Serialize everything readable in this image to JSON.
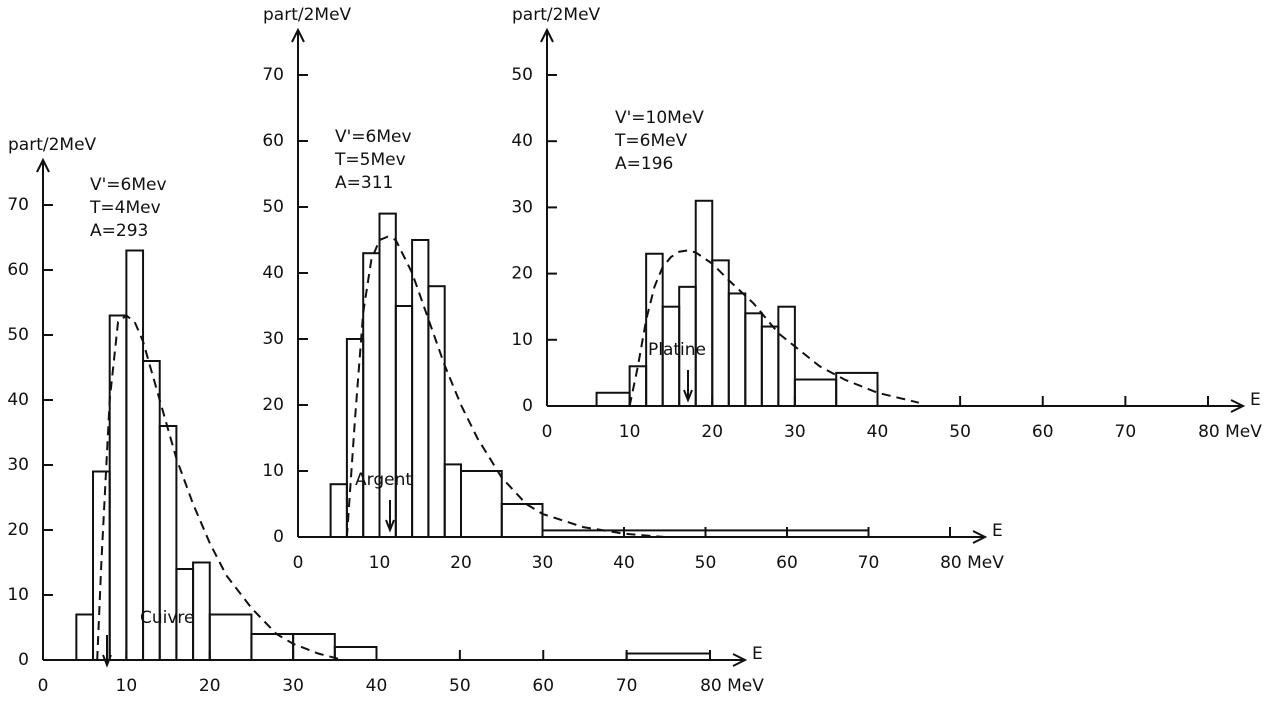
{
  "chart_data": [
    {
      "type": "histogram",
      "ylabel": "part/2MeV",
      "xlabel": "E",
      "label": "Cuivre",
      "annotations": [
        "V'=6Mev",
        "T=4Mev",
        "A=293"
      ],
      "bins": [
        4,
        6,
        8,
        10,
        12,
        14,
        16,
        18,
        20,
        25,
        30,
        35,
        40,
        70,
        80
      ],
      "values": [
        7,
        29,
        53,
        63,
        46,
        36,
        14,
        15,
        7,
        4,
        4,
        2,
        0,
        1
      ],
      "fit": {
        "x": [
          6.5,
          7,
          8,
          9,
          10,
          11,
          12,
          14,
          16,
          18,
          20,
          22,
          25,
          28,
          30,
          33,
          36
        ],
        "values": [
          0,
          15,
          40,
          52,
          53,
          52,
          49,
          40,
          31,
          24,
          18,
          13,
          8,
          4,
          2.5,
          1,
          0
        ]
      },
      "xlim": [
        0,
        80
      ],
      "ylim": [
        0,
        70
      ],
      "xticks": [
        0,
        10,
        20,
        30,
        40,
        50,
        60,
        70,
        {
          "value": 80,
          "label": "80 MeV"
        }
      ],
      "yticks": [
        0,
        10,
        20,
        30,
        40,
        50,
        60,
        70
      ]
    },
    {
      "type": "histogram",
      "ylabel": "part/2MeV",
      "xlabel": "E",
      "label": "Argent",
      "annotations": [
        "V'=6Mev",
        "T=5Mev",
        "A=311"
      ],
      "bins": [
        4,
        6,
        8,
        10,
        12,
        14,
        16,
        18,
        20,
        25,
        30,
        40,
        70
      ],
      "values": [
        8,
        30,
        43,
        49,
        35,
        45,
        38,
        11,
        10,
        5,
        1,
        1
      ],
      "fit": {
        "x": [
          6,
          7,
          8,
          9,
          10,
          11,
          12,
          14,
          16,
          18,
          20,
          22,
          25,
          28,
          30,
          35,
          40,
          45
        ],
        "values": [
          0,
          18,
          34,
          42,
          45,
          45.5,
          45,
          40,
          33,
          26,
          20,
          15,
          9,
          5,
          3.5,
          1.5,
          0.5,
          0
        ]
      },
      "xlim": [
        0,
        80
      ],
      "ylim": [
        0,
        70
      ],
      "xticks": [
        0,
        10,
        20,
        30,
        40,
        50,
        60,
        70,
        {
          "value": 80,
          "label": "80 MeV"
        }
      ],
      "yticks": [
        0,
        10,
        20,
        30,
        40,
        50,
        60,
        70
      ]
    },
    {
      "type": "histogram",
      "ylabel": "part/2MeV",
      "xlabel": "E",
      "label": "Platine",
      "annotations": [
        "V'=10MeV",
        "T=6MeV",
        "A=196"
      ],
      "bins": [
        6,
        10,
        12,
        14,
        16,
        18,
        20,
        22,
        24,
        26,
        28,
        30,
        35,
        40
      ],
      "values": [
        2,
        6,
        23,
        15,
        18,
        31,
        22,
        17,
        14,
        12,
        15,
        4,
        5
      ],
      "fit": {
        "x": [
          10,
          11,
          12,
          13,
          14,
          15,
          16,
          17,
          18,
          20,
          22,
          25,
          28,
          30,
          33,
          36,
          40,
          45
        ],
        "values": [
          0,
          6,
          13,
          18,
          21,
          22.5,
          23.3,
          23.5,
          23.2,
          21.5,
          19,
          15.5,
          11,
          9,
          6,
          4,
          2,
          0.5
        ]
      },
      "xlim": [
        0,
        80
      ],
      "ylim": [
        0,
        50
      ],
      "xticks": [
        0,
        10,
        20,
        30,
        40,
        50,
        60,
        70,
        {
          "value": 80,
          "label": "80 MeV"
        }
      ],
      "yticks": [
        0,
        10,
        20,
        30,
        40,
        50
      ]
    }
  ]
}
